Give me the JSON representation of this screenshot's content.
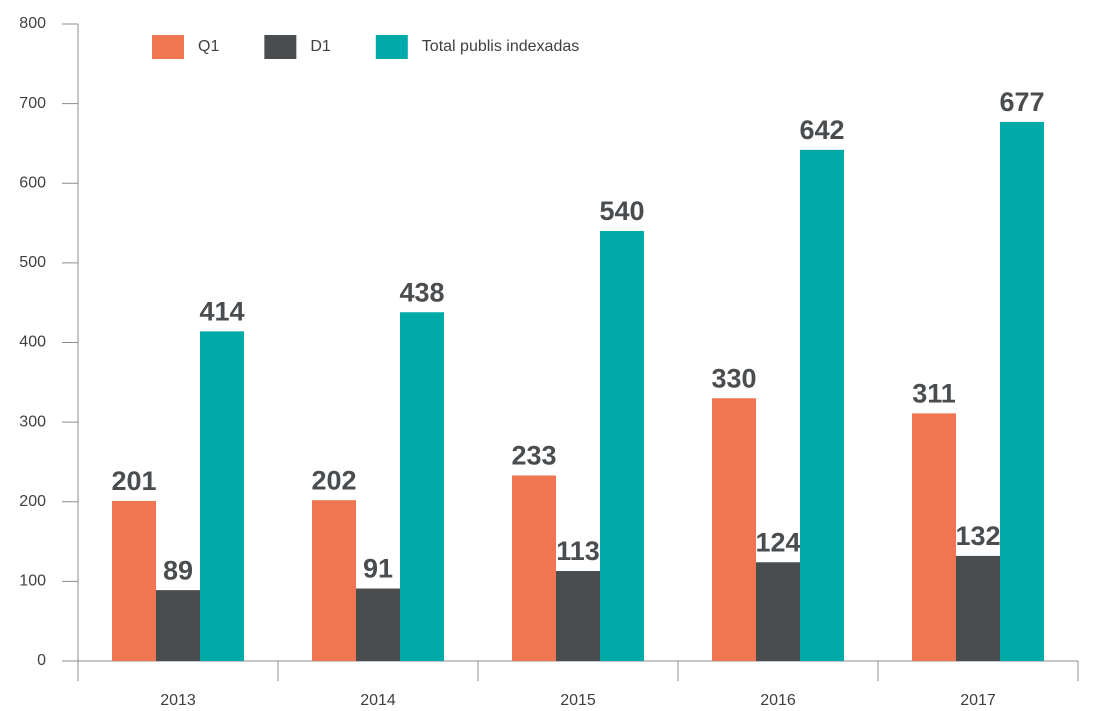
{
  "chart_data": {
    "type": "bar",
    "categories": [
      "2013",
      "2014",
      "2015",
      "2016",
      "2017"
    ],
    "series": [
      {
        "name": "Q1",
        "color": "#ee7752",
        "values": [
          201,
          202,
          233,
          330,
          311
        ]
      },
      {
        "name": "D1",
        "color": "#4a4d50",
        "values": [
          89,
          91,
          113,
          124,
          132
        ]
      },
      {
        "name": "Total publis indexadas",
        "color": "#00aaa8",
        "values": [
          414,
          438,
          540,
          642,
          677
        ]
      }
    ],
    "ylim": [
      0,
      800
    ],
    "yticks": [
      0,
      100,
      200,
      300,
      400,
      500,
      600,
      700,
      800
    ],
    "grid": false,
    "legend": "top-left"
  }
}
